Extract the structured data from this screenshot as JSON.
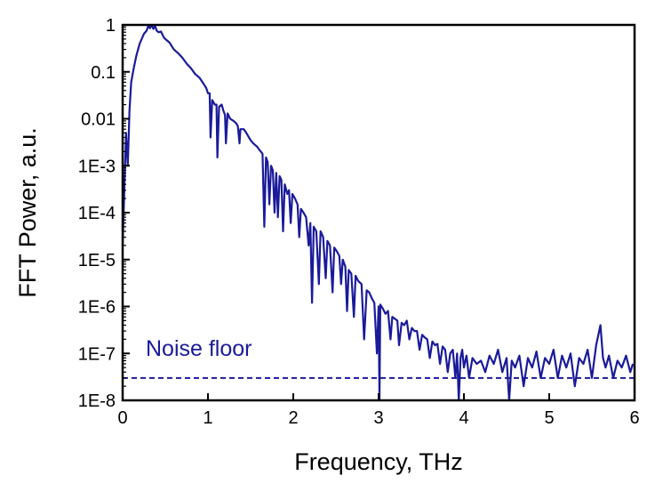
{
  "chart_data": {
    "type": "line",
    "title": "",
    "xlabel": "Frequency, THz",
    "ylabel": "FFT Power, a.u.",
    "xlim": [
      0,
      6
    ],
    "ylim": [
      1e-08,
      1
    ],
    "yscale": "log",
    "grid": false,
    "legend": "none",
    "x_ticks": [
      {
        "value": 0,
        "label": "0"
      },
      {
        "value": 1,
        "label": "1"
      },
      {
        "value": 2,
        "label": "2"
      },
      {
        "value": 3,
        "label": "3"
      },
      {
        "value": 4,
        "label": "4"
      },
      {
        "value": 5,
        "label": "5"
      },
      {
        "value": 6,
        "label": "6"
      }
    ],
    "y_ticks": [
      {
        "value": 1,
        "label": "1"
      },
      {
        "value": 0.1,
        "label": "0.1"
      },
      {
        "value": 0.01,
        "label": "0.01"
      },
      {
        "value": 0.001,
        "label": "1E-3"
      },
      {
        "value": 0.0001,
        "label": "1E-4"
      },
      {
        "value": 1e-05,
        "label": "1E-5"
      },
      {
        "value": 1e-06,
        "label": "1E-6"
      },
      {
        "value": 1e-07,
        "label": "1E-7"
      },
      {
        "value": 1e-08,
        "label": "1E-8"
      }
    ],
    "series": [
      {
        "color": "#1a1a9a",
        "points": [
          [
            0.0,
            2e-05
          ],
          [
            0.02,
            0.0003
          ],
          [
            0.04,
            0.005
          ],
          [
            0.06,
            0.001
          ],
          [
            0.08,
            0.015
          ],
          [
            0.1,
            0.06
          ],
          [
            0.13,
            0.12
          ],
          [
            0.16,
            0.22
          ],
          [
            0.2,
            0.4
          ],
          [
            0.25,
            0.65
          ],
          [
            0.28,
            0.75
          ],
          [
            0.3,
            0.95
          ],
          [
            0.32,
            0.85
          ],
          [
            0.34,
            1.0
          ],
          [
            0.36,
            0.82
          ],
          [
            0.38,
            0.95
          ],
          [
            0.4,
            0.75
          ],
          [
            0.42,
            0.7
          ],
          [
            0.45,
            0.72
          ],
          [
            0.48,
            0.55
          ],
          [
            0.5,
            0.5
          ],
          [
            0.55,
            0.42
          ],
          [
            0.6,
            0.3
          ],
          [
            0.65,
            0.25
          ],
          [
            0.7,
            0.2
          ],
          [
            0.75,
            0.15
          ],
          [
            0.8,
            0.12
          ],
          [
            0.85,
            0.09
          ],
          [
            0.9,
            0.075
          ],
          [
            0.95,
            0.055
          ],
          [
            0.98,
            0.045
          ],
          [
            1.0,
            0.035
          ],
          [
            1.02,
            0.035
          ],
          [
            1.03,
            0.004
          ],
          [
            1.05,
            0.025
          ],
          [
            1.08,
            0.02
          ],
          [
            1.1,
            0.02
          ],
          [
            1.11,
            0.0015
          ],
          [
            1.13,
            0.018
          ],
          [
            1.16,
            0.02
          ],
          [
            1.18,
            0.015
          ],
          [
            1.2,
            0.012
          ],
          [
            1.21,
            0.003
          ],
          [
            1.23,
            0.013
          ],
          [
            1.26,
            0.01
          ],
          [
            1.3,
            0.009
          ],
          [
            1.33,
            0.008
          ],
          [
            1.35,
            0.007
          ],
          [
            1.37,
            0.003
          ],
          [
            1.38,
            0.006
          ],
          [
            1.42,
            0.006
          ],
          [
            1.45,
            0.005
          ],
          [
            1.48,
            0.004
          ],
          [
            1.5,
            0.0035
          ],
          [
            1.53,
            0.003
          ],
          [
            1.55,
            0.0028
          ],
          [
            1.58,
            0.0025
          ],
          [
            1.6,
            0.0022
          ],
          [
            1.62,
            0.002
          ],
          [
            1.64,
            0.0018
          ],
          [
            1.66,
            5e-05
          ],
          [
            1.68,
            0.0015
          ],
          [
            1.7,
            0.0012
          ],
          [
            1.72,
            0.00015
          ],
          [
            1.74,
            0.001
          ],
          [
            1.76,
            0.0008
          ],
          [
            1.78,
            0.0001
          ],
          [
            1.8,
            0.0007
          ],
          [
            1.82,
            8e-05
          ],
          [
            1.84,
            0.0006
          ],
          [
            1.86,
            0.0005
          ],
          [
            1.88,
            4e-05
          ],
          [
            1.9,
            0.0004
          ],
          [
            1.93,
            0.00025
          ],
          [
            1.95,
            0.0003
          ],
          [
            1.97,
            6e-05
          ],
          [
            1.99,
            0.00025
          ],
          [
            2.02,
            0.0002
          ],
          [
            2.05,
            0.00015
          ],
          [
            2.07,
            3e-05
          ],
          [
            2.09,
            0.00012
          ],
          [
            2.12,
            0.0001
          ],
          [
            2.15,
            8e-05
          ],
          [
            2.18,
            2e-05
          ],
          [
            2.2,
            6e-05
          ],
          [
            2.22,
            1.2e-06
          ],
          [
            2.24,
            5e-05
          ],
          [
            2.27,
            4e-05
          ],
          [
            2.3,
            3e-06
          ],
          [
            2.32,
            4e-05
          ],
          [
            2.35,
            3e-05
          ],
          [
            2.38,
            4e-06
          ],
          [
            2.4,
            2.5e-05
          ],
          [
            2.43,
            2e-05
          ],
          [
            2.46,
            2e-06
          ],
          [
            2.48,
            1.8e-05
          ],
          [
            2.51,
            1.5e-05
          ],
          [
            2.54,
            1.2e-05
          ],
          [
            2.56,
            3e-06
          ],
          [
            2.58,
            1e-05
          ],
          [
            2.61,
            7e-06
          ],
          [
            2.63,
            8e-07
          ],
          [
            2.65,
            6e-06
          ],
          [
            2.68,
            5e-06
          ],
          [
            2.71,
            6e-07
          ],
          [
            2.73,
            4.5e-06
          ],
          [
            2.76,
            3.5e-06
          ],
          [
            2.8,
            3e-06
          ],
          [
            2.83,
            2e-07
          ],
          [
            2.86,
            2.2e-06
          ],
          [
            2.89,
            2e-06
          ],
          [
            2.92,
            1.5e-06
          ],
          [
            2.95,
            1.2e-06
          ],
          [
            2.98,
            1e-07
          ],
          [
            3.0,
            1e-06
          ],
          [
            3.01,
            1e-08
          ],
          [
            3.02,
            1.1e-06
          ],
          [
            3.05,
            9e-07
          ],
          [
            3.08,
            7e-07
          ],
          [
            3.11,
            8e-07
          ],
          [
            3.14,
            2e-07
          ],
          [
            3.16,
            6e-07
          ],
          [
            3.19,
            5.5e-07
          ],
          [
            3.22,
            5e-07
          ],
          [
            3.24,
            1.5e-07
          ],
          [
            3.27,
            4.5e-07
          ],
          [
            3.3,
            4e-07
          ],
          [
            3.33,
            5e-07
          ],
          [
            3.36,
            2e-07
          ],
          [
            3.39,
            3.5e-07
          ],
          [
            3.42,
            3e-07
          ],
          [
            3.45,
            3e-07
          ],
          [
            3.48,
            1.2e-07
          ],
          [
            3.51,
            2.5e-07
          ],
          [
            3.54,
            2.2e-07
          ],
          [
            3.57,
            2e-07
          ],
          [
            3.6,
            8e-08
          ],
          [
            3.63,
            1.8e-07
          ],
          [
            3.66,
            1.5e-07
          ],
          [
            3.69,
            1.6e-07
          ],
          [
            3.72,
            6e-08
          ],
          [
            3.75,
            1.4e-07
          ],
          [
            3.78,
            1.2e-07
          ],
          [
            3.81,
            4e-08
          ],
          [
            3.84,
            1e-07
          ],
          [
            3.87,
            1.2e-07
          ],
          [
            3.9,
            3e-08
          ],
          [
            3.92,
            1e-07
          ],
          [
            3.94,
            1e-08
          ],
          [
            3.96,
            8e-08
          ],
          [
            3.98,
            1.2e-07
          ],
          [
            4.0,
            5e-08
          ],
          [
            4.03,
            9e-08
          ],
          [
            4.06,
            3e-08
          ],
          [
            4.1,
            8e-08
          ],
          [
            4.15,
            6e-08
          ],
          [
            4.2,
            7e-08
          ],
          [
            4.25,
            4e-08
          ],
          [
            4.3,
            9e-08
          ],
          [
            4.35,
            6e-08
          ],
          [
            4.4,
            1.2e-07
          ],
          [
            4.45,
            4e-08
          ],
          [
            4.5,
            8e-08
          ],
          [
            4.53,
            1e-08
          ],
          [
            4.56,
            7e-08
          ],
          [
            4.6,
            5e-08
          ],
          [
            4.65,
            9e-08
          ],
          [
            4.7,
            2e-08
          ],
          [
            4.75,
            8e-08
          ],
          [
            4.8,
            5e-08
          ],
          [
            4.85,
            1.1e-07
          ],
          [
            4.9,
            3e-08
          ],
          [
            4.95,
            8e-08
          ],
          [
            5.0,
            6e-08
          ],
          [
            5.05,
            1.2e-07
          ],
          [
            5.1,
            3e-08
          ],
          [
            5.15,
            9e-08
          ],
          [
            5.2,
            5e-08
          ],
          [
            5.25,
            1e-07
          ],
          [
            5.3,
            2e-08
          ],
          [
            5.35,
            8e-08
          ],
          [
            5.4,
            6e-08
          ],
          [
            5.45,
            1.2e-07
          ],
          [
            5.5,
            3e-08
          ],
          [
            5.55,
            1.5e-07
          ],
          [
            5.6,
            4e-07
          ],
          [
            5.63,
            8e-08
          ],
          [
            5.66,
            5e-08
          ],
          [
            5.7,
            9e-08
          ],
          [
            5.75,
            3e-08
          ],
          [
            5.8,
            7e-08
          ],
          [
            5.85,
            5e-08
          ],
          [
            5.9,
            9e-08
          ],
          [
            5.95,
            4e-08
          ],
          [
            5.98,
            6e-08
          ]
        ]
      }
    ],
    "reference_line": {
      "y": 3e-08,
      "style": "dashed",
      "label": "Noise floor",
      "color": "#1a1a9a"
    }
  }
}
